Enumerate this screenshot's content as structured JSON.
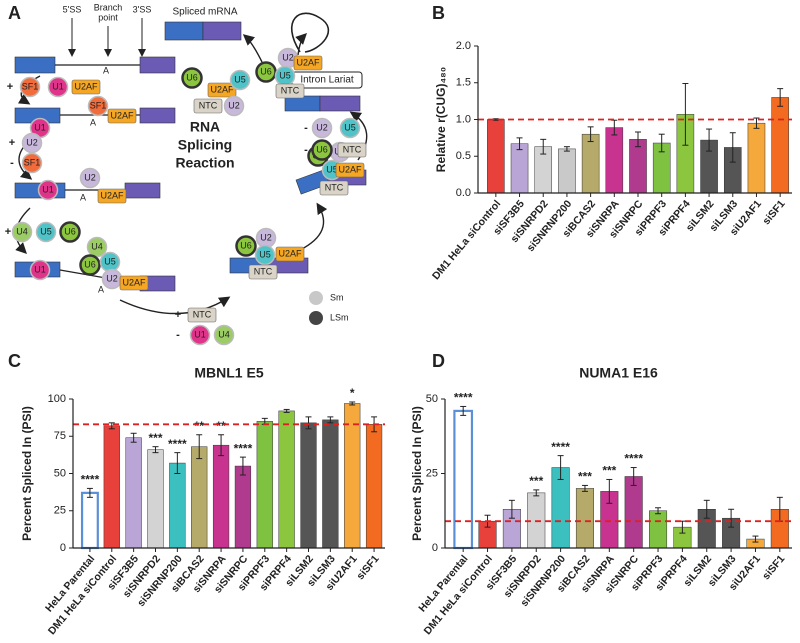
{
  "diagram": {
    "panel_label": "A",
    "title_lines": [
      "RNA",
      "Splicing",
      "Reaction"
    ],
    "site_labels": [
      "5'SS",
      "3'SS"
    ],
    "branch_point": [
      "Branch",
      "point"
    ],
    "branch": "A",
    "spliced": "Spliced mRNA",
    "lariat": "Intron Lariat",
    "factors": [
      "SF1",
      "U1",
      "U2AF",
      "U2",
      "U4",
      "U5",
      "U6",
      "NTC"
    ],
    "signs": [
      "+",
      "-"
    ],
    "legend": [
      "Sm",
      "LSm"
    ]
  },
  "chart_data": [
    {
      "type": "bar",
      "panel_label": "B",
      "ylabel": "Relative r(CUG)₄₈₀",
      "categories": [
        "DM1 HeLa siControl",
        "siSF3B5",
        "siSNRPD2",
        "siSNRNP200",
        "siBCAS2",
        "siSNRPA",
        "siSNRPC",
        "siPRPF3",
        "siPRPF4",
        "siLSM2",
        "siLSM3",
        "siU2AF1",
        "siSF1"
      ],
      "values": [
        1.0,
        0.67,
        0.63,
        0.6,
        0.8,
        0.89,
        0.73,
        0.68,
        1.07,
        0.72,
        0.62,
        0.95,
        1.3
      ],
      "errors": [
        0.01,
        0.08,
        0.1,
        0.03,
        0.1,
        0.1,
        0.1,
        0.12,
        0.42,
        0.15,
        0.2,
        0.07,
        0.12
      ],
      "colors": [
        "#e8413c",
        "#b9a6d6",
        "#d3d3d3",
        "#c9c9c9",
        "#b5aa6a",
        "#c8338f",
        "#b03a8e",
        "#7fc241",
        "#8cc63f",
        "#555555",
        "#555555",
        "#f5a93c",
        "#f26b21"
      ],
      "bar_style": [
        "solid",
        "solid",
        "solid",
        "solid",
        "solid",
        "solid",
        "solid",
        "solid",
        "solid",
        "solid",
        "solid",
        "solid",
        "solid"
      ],
      "ylim": [
        0,
        2
      ],
      "yticks": [
        {
          "value": 0,
          "label": "0.0"
        },
        {
          "value": 0.5,
          "label": "0.5"
        },
        {
          "value": 1,
          "label": "1.0"
        },
        {
          "value": 1.5,
          "label": "1.5"
        },
        {
          "value": 2,
          "label": "2.0"
        }
      ],
      "reference_line": 1,
      "reference_color": "#e02020"
    },
    {
      "type": "bar",
      "panel_label": "C",
      "title": "MBNL1 E5",
      "ylabel": "Percent Spliced In (PSI)",
      "categories": [
        "HeLa Parental",
        "DM1 HeLa siControl",
        "siSF3B5",
        "siSNRPD2",
        "siSNRNP200",
        "siBCAS2",
        "siSNRPA",
        "siSNRPC",
        "siPRPF3",
        "siPRPF4",
        "siLSM2",
        "siLSM3",
        "siU2AF1",
        "siSF1"
      ],
      "values": [
        37,
        82,
        74,
        66,
        57,
        68,
        69,
        55,
        85,
        92,
        84,
        86,
        97,
        83
      ],
      "errors": [
        3,
        2,
        3,
        2,
        7,
        8,
        7,
        6,
        2,
        1,
        4,
        2,
        1,
        5
      ],
      "significance": [
        "****",
        null,
        null,
        "***",
        "****",
        "**",
        "**",
        "****",
        null,
        null,
        null,
        null,
        "*",
        null
      ],
      "colors": [
        "#5b8fd6",
        "#e8413c",
        "#b9a6d6",
        "#d3d3d3",
        "#3cbfbf",
        "#b5aa6a",
        "#c8338f",
        "#b03a8e",
        "#7fc241",
        "#8cc63f",
        "#555555",
        "#555555",
        "#f5a93c",
        "#f26b21"
      ],
      "bar_style": [
        "outline",
        "solid",
        "solid",
        "solid",
        "solid",
        "solid",
        "solid",
        "solid",
        "solid",
        "solid",
        "solid",
        "solid",
        "solid",
        "solid"
      ],
      "ylim": [
        0,
        100
      ],
      "yticks": [
        0,
        25,
        50,
        75,
        100
      ],
      "reference_line": 83,
      "reference_color": "#e02020"
    },
    {
      "type": "bar",
      "panel_label": "D",
      "title": "NUMA1 E16",
      "ylabel": "Percent Spliced In (PSI)",
      "categories": [
        "HeLa Parental",
        "DM1 HeLa siControl",
        "siSF3B5",
        "siSNRPD2",
        "siSNRNP200",
        "siBCAS2",
        "siSNRPA",
        "siSNRPC",
        "siPRPF3",
        "siPRPF4",
        "siLSM2",
        "siLSM3",
        "siU2AF1",
        "siSF1"
      ],
      "values": [
        46,
        9,
        13,
        18.5,
        27,
        20,
        19,
        24,
        12.5,
        7,
        13,
        10,
        3,
        13
      ],
      "errors": [
        1.5,
        2,
        3,
        1,
        4,
        1,
        4,
        3,
        1,
        2,
        3,
        3,
        1,
        4
      ],
      "significance": [
        "****",
        null,
        null,
        "***",
        "****",
        "***",
        "***",
        "****",
        null,
        null,
        null,
        null,
        null,
        null
      ],
      "colors": [
        "#5b8fd6",
        "#e8413c",
        "#b9a6d6",
        "#d3d3d3",
        "#3cbfbf",
        "#b5aa6a",
        "#c8338f",
        "#b03a8e",
        "#7fc241",
        "#8cc63f",
        "#555555",
        "#555555",
        "#f5a93c",
        "#f26b21"
      ],
      "bar_style": [
        "outline",
        "solid",
        "solid",
        "solid",
        "solid",
        "solid",
        "solid",
        "solid",
        "solid",
        "solid",
        "solid",
        "solid",
        "solid",
        "solid"
      ],
      "ylim": [
        0,
        50
      ],
      "yticks": [
        0,
        25,
        50
      ],
      "reference_line": 9,
      "reference_color": "#e02020"
    }
  ]
}
